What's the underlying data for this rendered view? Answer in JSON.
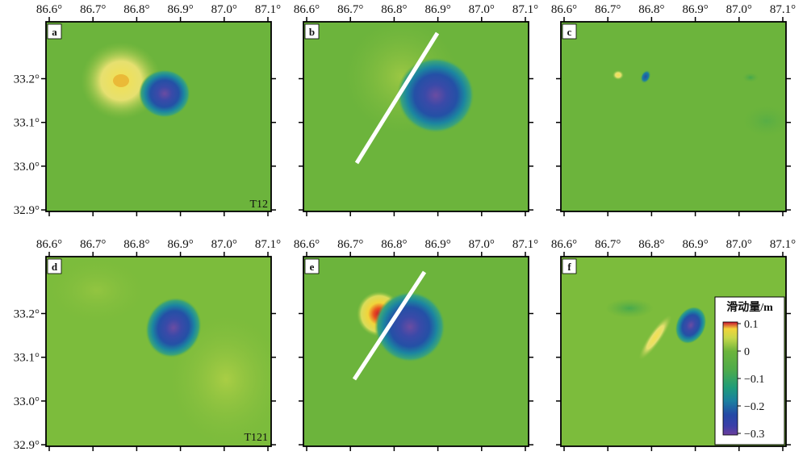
{
  "x_ticks": [
    "86.6°",
    "86.7°",
    "86.8°",
    "86.9°",
    "87.0°",
    "87.1°"
  ],
  "y_ticks": [
    "33.2°",
    "33.1°",
    "33.0°",
    "32.9°"
  ],
  "panels": [
    {
      "id": "a",
      "label": "a",
      "tag": "T12"
    },
    {
      "id": "b",
      "label": "b",
      "tag": ""
    },
    {
      "id": "c",
      "label": "c",
      "tag": ""
    },
    {
      "id": "d",
      "label": "d",
      "tag": "T121"
    },
    {
      "id": "e",
      "label": "e",
      "tag": ""
    },
    {
      "id": "f",
      "label": "f",
      "tag": ""
    }
  ],
  "colorbar": {
    "title": "滑动量/m",
    "ticks": [
      "0.1",
      "0",
      "−0.1",
      "−0.2",
      "−0.3"
    ],
    "colors": [
      "#c8102e",
      "#f2d43a",
      "#e8e46a",
      "#7cbc3a",
      "#5aae3e",
      "#1f9c7a",
      "#1b7fa0",
      "#2449a6",
      "#3b3fa8",
      "#6b3e9c"
    ]
  },
  "colors": {
    "background_field": "#6cb43c",
    "fault_line": "#ffffff",
    "frame": "#000000"
  }
}
